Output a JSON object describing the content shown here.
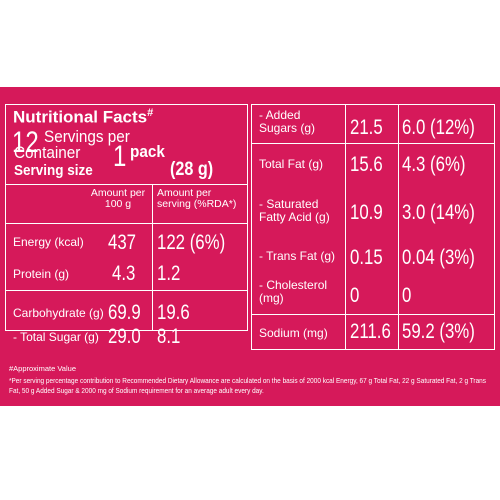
{
  "header": {
    "title": "Nutritional Facts",
    "title_mark": "#",
    "servings_count": "12",
    "servings_line1": "Servings per",
    "servings_line2": "Container",
    "serving_size_label": "Serving size",
    "serving_size_count": "1",
    "serving_size_unit": "pack",
    "serving_size_weight": "(28 g)"
  },
  "columns": {
    "per100_line1": "Amount per",
    "per100_line2": "100 g",
    "perserving_line1": "Amount per",
    "perserving_line2": "serving (%RDA*)"
  },
  "left_rows": [
    {
      "label": "Energy (kcal)",
      "per100": "437",
      "perserving": "122 (6%)"
    },
    {
      "label": "Protein (g)",
      "per100": "4.3",
      "perserving": "1.2"
    },
    {
      "label": "Carbohydrate (g)",
      "per100": "69.9",
      "perserving": "19.6"
    },
    {
      "label": "- Total Sugar (g)",
      "per100": "29.0",
      "perserving": "8.1"
    }
  ],
  "right_rows": [
    {
      "label1": "- Added",
      "label2": "Sugars (g)",
      "per100": "21.5",
      "perserving": "6.0 (12%)"
    },
    {
      "label1": "Total Fat (g)",
      "label2": "",
      "per100": "15.6",
      "perserving": "4.3 (6%)"
    },
    {
      "label1": "- Saturated",
      "label2": "Fatty Acid (g)",
      "per100": "10.9",
      "perserving": "3.0 (14%)"
    },
    {
      "label1": "- Trans Fat (g)",
      "label2": "",
      "per100": "0.15",
      "perserving": "0.04 (3%)"
    },
    {
      "label1": "- Cholesterol",
      "label2": "(mg)",
      "per100": "0",
      "perserving": "0"
    },
    {
      "label1": "Sodium (mg)",
      "label2": "",
      "per100": "211.6",
      "perserving": "59.2 (3%)"
    }
  ],
  "footnote": {
    "approx": "#Approximate Value",
    "rda_line1": "*Per serving percentage contribution to Recommended Dietary Allowance are calculated on the basis of 2000 kcal Energy, 67 g Total Fat, 22 g Saturated Fat, 2 g Trans",
    "rda_line2": "Fat, 50 g Added Sugar & 2000 mg of Sodium requirement for an average adult every day."
  },
  "colors": {
    "panel": "#d6195a",
    "text": "#ffffff",
    "background": "#ffffff"
  }
}
